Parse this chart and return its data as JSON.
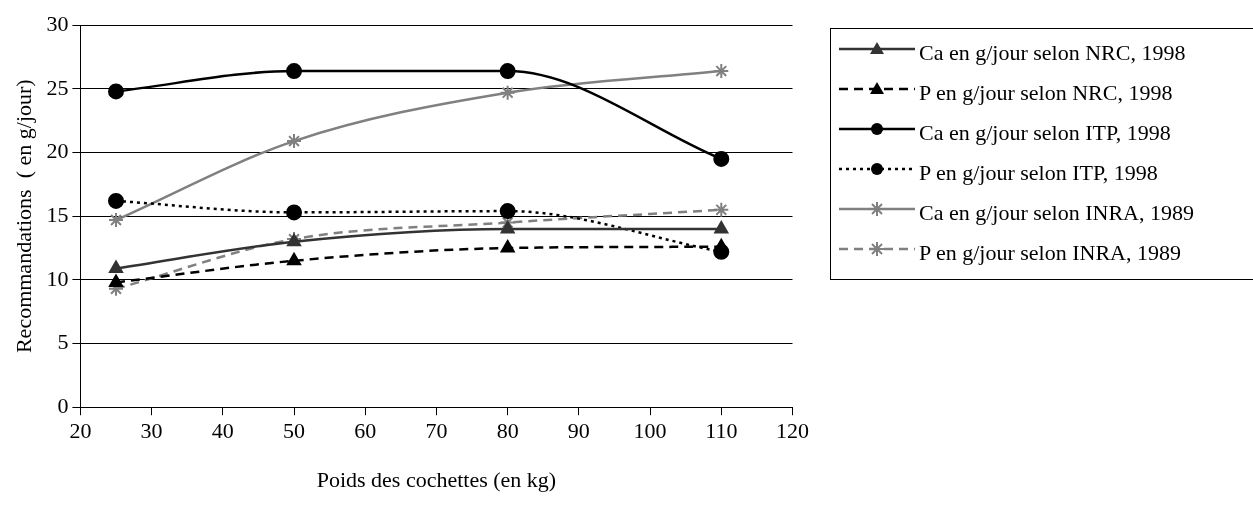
{
  "chart_data": {
    "type": "line",
    "xlabel": "Poids des cochettes (en kg)",
    "ylabel": "Recommandations  ( en g/jour)",
    "x": [
      25,
      50,
      80,
      110
    ],
    "xlim": [
      20,
      120
    ],
    "xticks": [
      20,
      30,
      40,
      50,
      60,
      70,
      80,
      90,
      100,
      110,
      120
    ],
    "ylim": [
      0,
      30
    ],
    "yticks": [
      0,
      5,
      10,
      15,
      20,
      25,
      30
    ],
    "grid": "y",
    "legend": "right",
    "series": [
      {
        "name": "Ca en g/jour selon NRC, 1998",
        "color": "#333333",
        "line_style": "solid",
        "marker": "triangle",
        "values": [
          10.9,
          13.0,
          14.0,
          14.0
        ]
      },
      {
        "name": "P en g/jour selon NRC, 1998",
        "color": "#000000",
        "line_style": "dashed",
        "marker": "triangle",
        "values": [
          9.8,
          11.5,
          12.5,
          12.6
        ]
      },
      {
        "name": "Ca en g/jour selon ITP, 1998",
        "color": "#000000",
        "line_style": "solid",
        "marker": "circle",
        "values": [
          24.8,
          26.4,
          26.4,
          19.5
        ]
      },
      {
        "name": "P en g/jour selon ITP, 1998",
        "color": "#000000",
        "line_style": "dotted",
        "marker": "circle",
        "values": [
          16.2,
          15.3,
          15.4,
          12.2
        ]
      },
      {
        "name": "Ca en g/jour selon INRA, 1989",
        "color": "#808080",
        "line_style": "solid",
        "marker": "cross",
        "values": [
          14.7,
          20.9,
          24.7,
          26.4
        ]
      },
      {
        "name": "P en g/jour selon INRA, 1989",
        "color": "#808080",
        "line_style": "dashed",
        "marker": "cross",
        "values": [
          9.3,
          13.2,
          14.5,
          15.5
        ]
      }
    ]
  }
}
